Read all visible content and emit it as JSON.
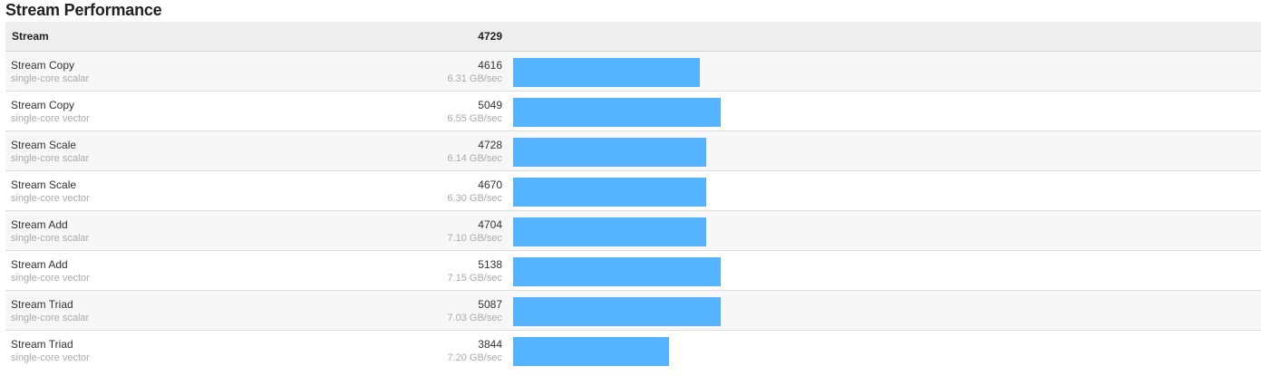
{
  "title": "Stream Performance",
  "header": {
    "name": "Stream",
    "score": "4729"
  },
  "bar_color": "#55b3ff",
  "bar_scale_max": 5138,
  "rows": [
    {
      "name": "Stream Copy",
      "sub": "single-core scalar",
      "score": "4616",
      "rate": "6.31 GB/sec",
      "bar_fraction": 0.898
    },
    {
      "name": "Stream Copy",
      "sub": "single-core vector",
      "score": "5049",
      "rate": "6.55 GB/sec",
      "bar_fraction": 1.0
    },
    {
      "name": "Stream Scale",
      "sub": "single-core scalar",
      "score": "4728",
      "rate": "6.14 GB/sec",
      "bar_fraction": 0.93
    },
    {
      "name": "Stream Scale",
      "sub": "single-core vector",
      "score": "4670",
      "rate": "6.30 GB/sec",
      "bar_fraction": 0.93
    },
    {
      "name": "Stream Add",
      "sub": "single-core scalar",
      "score": "4704",
      "rate": "7.10 GB/sec",
      "bar_fraction": 0.93
    },
    {
      "name": "Stream Add",
      "sub": "single-core vector",
      "score": "5138",
      "rate": "7.15 GB/sec",
      "bar_fraction": 1.0
    },
    {
      "name": "Stream Triad",
      "sub": "single-core scalar",
      "score": "5087",
      "rate": "7.03 GB/sec",
      "bar_fraction": 1.0
    },
    {
      "name": "Stream Triad",
      "sub": "single-core vector",
      "score": "3844",
      "rate": "7.20 GB/sec",
      "bar_fraction": 0.75
    }
  ]
}
